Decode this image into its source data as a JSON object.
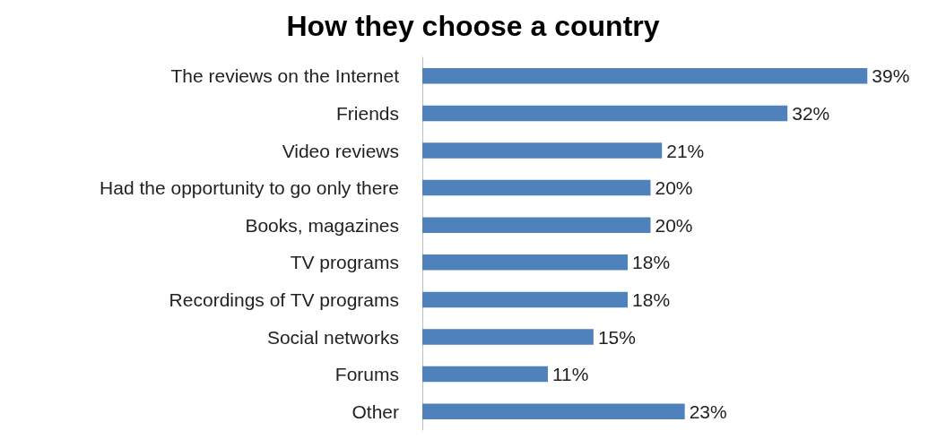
{
  "chart_data": {
    "type": "bar",
    "orientation": "horizontal",
    "title": "How they choose a country",
    "categories": [
      "The reviews on the Internet",
      "Friends",
      "Video reviews",
      "Had the opportunity to go only there",
      "Books, magazines",
      "TV programs",
      "Recordings of TV programs",
      "Social networks",
      "Forums",
      "Other"
    ],
    "values": [
      39,
      32,
      21,
      20,
      20,
      18,
      18,
      15,
      11,
      23
    ],
    "value_labels": [
      "39%",
      "32%",
      "21%",
      "20%",
      "20%",
      "18%",
      "18%",
      "15%",
      "11%",
      "23%"
    ],
    "color": "#4f81bd",
    "tick_labels": "y"
  }
}
